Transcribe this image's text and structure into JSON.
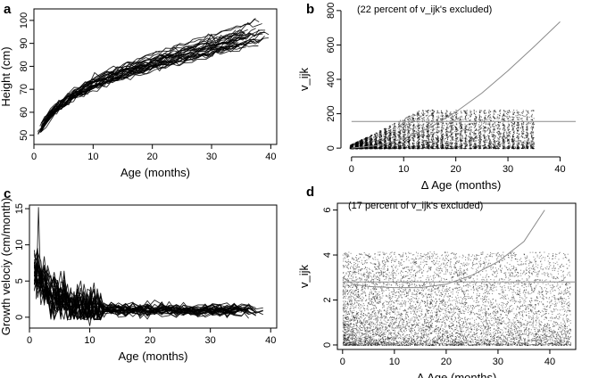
{
  "chart_data": [
    {
      "panel": "a",
      "type": "line",
      "xlabel": "Age (months)",
      "ylabel": "Height (cm)",
      "xlim": [
        0,
        41
      ],
      "ylim": [
        46,
        105
      ],
      "xticks": [
        0,
        10,
        20,
        30,
        40
      ],
      "yticks": [
        50,
        60,
        70,
        80,
        90,
        100
      ],
      "n_series": 30,
      "mean_curve": {
        "x": [
          1,
          3,
          6,
          10,
          15,
          20,
          25,
          30,
          35,
          39
        ],
        "y": [
          52,
          60,
          66,
          72,
          77,
          81,
          84.5,
          88,
          91.5,
          95
        ]
      }
    },
    {
      "panel": "b",
      "type": "scatter",
      "note": "(22 percent of v_ijk's excluded)",
      "xlabel": "Δ Age (months)",
      "ylabel": "v_ijk",
      "xlim": [
        -1,
        43
      ],
      "ylim": [
        -20,
        820
      ],
      "xticks": [
        0,
        10,
        20,
        30,
        40
      ],
      "yticks": [
        0,
        200,
        400,
        600,
        800
      ],
      "cutoff": 155,
      "point_cap": 225,
      "curve": {
        "x": [
          0,
          5,
          10,
          15,
          20,
          25,
          30,
          35,
          40
        ],
        "y": [
          0,
          15,
          55,
          120,
          210,
          320,
          450,
          590,
          735
        ]
      }
    },
    {
      "panel": "c",
      "type": "line",
      "xlabel": "Age (months)",
      "ylabel": "Growth velociy (cm/month)",
      "xlim": [
        0,
        41
      ],
      "ylim": [
        -1.5,
        15.5
      ],
      "xticks": [
        0,
        10,
        20,
        30,
        40
      ],
      "yticks": [
        0,
        5,
        10,
        15
      ],
      "n_series": 30,
      "peak": {
        "x": 1.5,
        "y": 15.2
      }
    },
    {
      "panel": "d",
      "type": "scatter",
      "note": "(17 percent of v_ijk's excluded)",
      "xlabel": "Δ Age (months)",
      "ylabel": "v_ijk",
      "xlim": [
        -1,
        45
      ],
      "ylim": [
        -0.2,
        6.3
      ],
      "xticks": [
        0,
        10,
        20,
        30,
        40
      ],
      "yticks": [
        0,
        2,
        4,
        6
      ],
      "cutoff": 2.8,
      "point_cap": 4.15,
      "curve": {
        "x": [
          0,
          2,
          5,
          10,
          15,
          20,
          25,
          30,
          35,
          39
        ],
        "y": [
          3.0,
          2.7,
          2.6,
          2.55,
          2.55,
          2.7,
          3.1,
          3.7,
          4.6,
          6.0
        ]
      }
    }
  ]
}
